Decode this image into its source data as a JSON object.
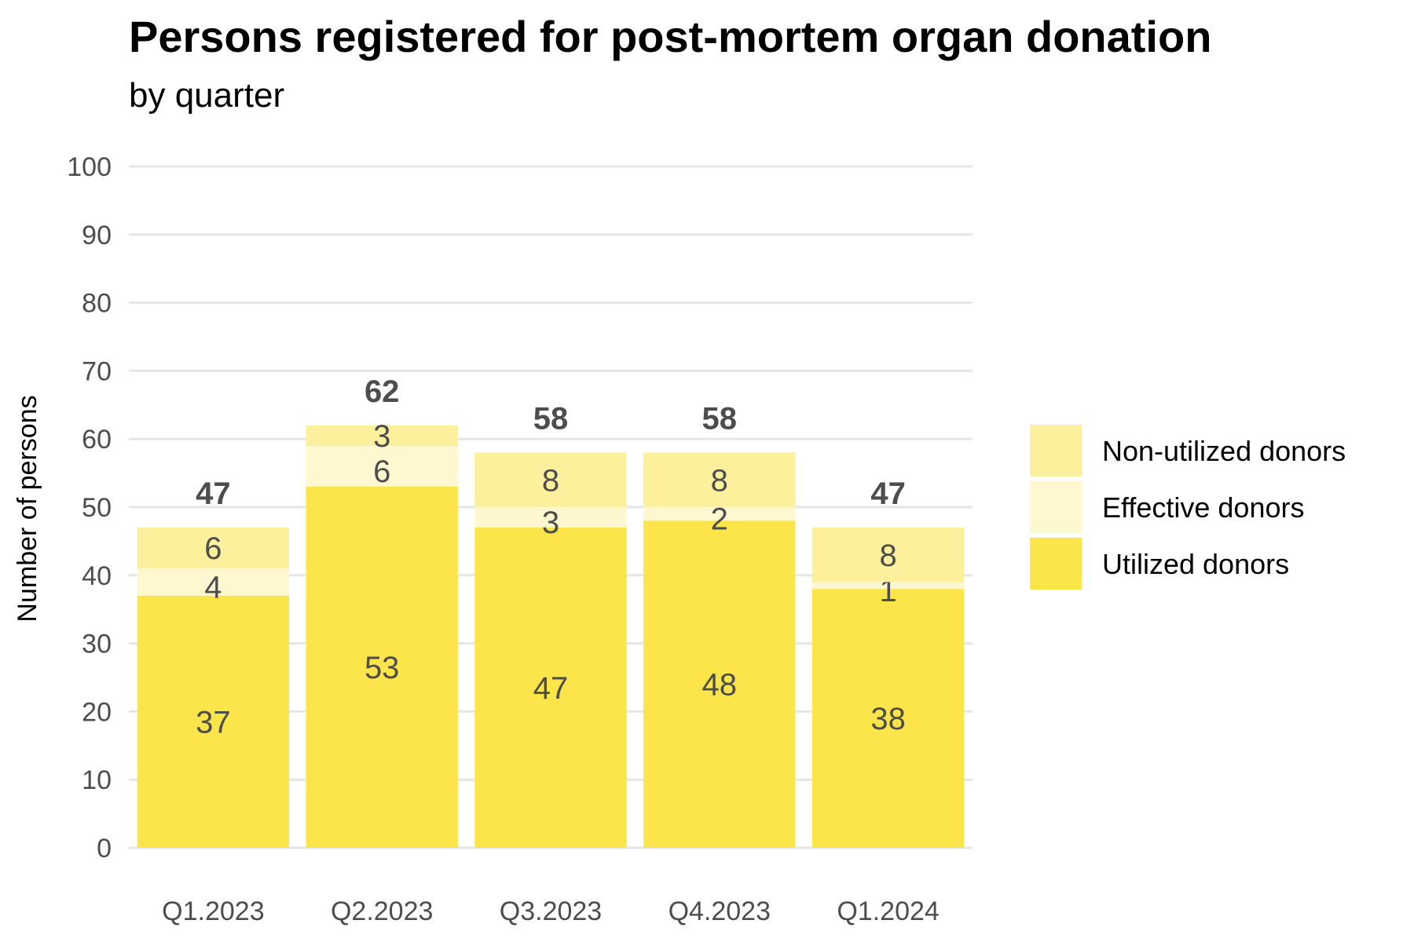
{
  "chart_data": {
    "type": "bar",
    "stacked": true,
    "title": "Persons registered for post-mortem organ donation",
    "subtitle": "by quarter",
    "xlabel": "",
    "ylabel": "Number of persons",
    "ylim": [
      0,
      100
    ],
    "yticks": [
      "0",
      "10",
      "20",
      "30",
      "40",
      "50",
      "60",
      "70",
      "80",
      "90",
      "100"
    ],
    "grid": true,
    "legend_position": "right",
    "categories": [
      "Q1.2023",
      "Q2.2023",
      "Q3.2023",
      "Q4.2023",
      "Q1.2024"
    ],
    "series": [
      {
        "name": "Utilized donors",
        "color": "#fbe54a",
        "values": [
          37,
          53,
          47,
          48,
          38
        ]
      },
      {
        "name": "Effective donors",
        "color": "#fef7cf",
        "values": [
          4,
          6,
          3,
          2,
          1
        ]
      },
      {
        "name": "Non-utilized donors",
        "color": "#fcf09c",
        "values": [
          6,
          3,
          8,
          8,
          8
        ]
      }
    ],
    "totals": [
      47,
      62,
      58,
      58,
      47
    ],
    "legend_order": [
      "Non-utilized donors",
      "Effective donors",
      "Utilized donors"
    ]
  }
}
